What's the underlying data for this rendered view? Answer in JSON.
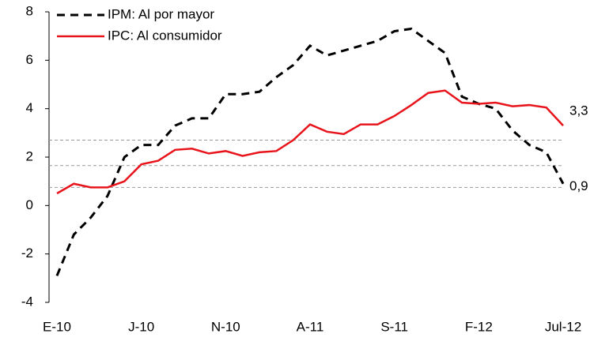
{
  "chart_data": {
    "type": "line",
    "categories": [
      "E-10",
      null,
      null,
      null,
      null,
      "J-10",
      null,
      null,
      null,
      null,
      "N-10",
      null,
      null,
      null,
      null,
      "A-11",
      null,
      null,
      null,
      null,
      "S-11",
      null,
      null,
      null,
      null,
      "F-12",
      null,
      null,
      null,
      null,
      "Jul-12"
    ],
    "series": [
      {
        "name": "IPM: Al por mayor",
        "color": "#000000",
        "dash": true,
        "values": [
          -2.9,
          -1.2,
          -0.5,
          0.4,
          2.0,
          2.5,
          2.5,
          3.3,
          3.6,
          3.6,
          4.6,
          4.6,
          4.7,
          5.3,
          5.8,
          6.6,
          6.2,
          6.4,
          6.6,
          6.8,
          7.2,
          7.3,
          6.8,
          6.3,
          4.5,
          4.2,
          4.0,
          3.1,
          2.5,
          2.2,
          0.9
        ],
        "end_label": "0,9"
      },
      {
        "name": "IPC: Al consumidor",
        "color": "#e8141b",
        "dash": false,
        "values": [
          0.5,
          0.9,
          0.75,
          0.75,
          1.0,
          1.7,
          1.85,
          2.3,
          2.35,
          2.15,
          2.25,
          2.05,
          2.2,
          2.25,
          2.7,
          3.35,
          3.05,
          2.95,
          3.35,
          3.35,
          3.7,
          4.15,
          4.65,
          4.75,
          4.25,
          4.2,
          4.25,
          4.1,
          4.15,
          4.05,
          3.3
        ],
        "end_label": "3,3"
      }
    ],
    "reference_lines": [
      2.7,
      1.65,
      0.75
    ],
    "ylim": [
      -4,
      8
    ],
    "yticks": [
      -4,
      -2,
      0,
      2,
      4,
      6,
      8
    ],
    "legend": "top-left"
  }
}
